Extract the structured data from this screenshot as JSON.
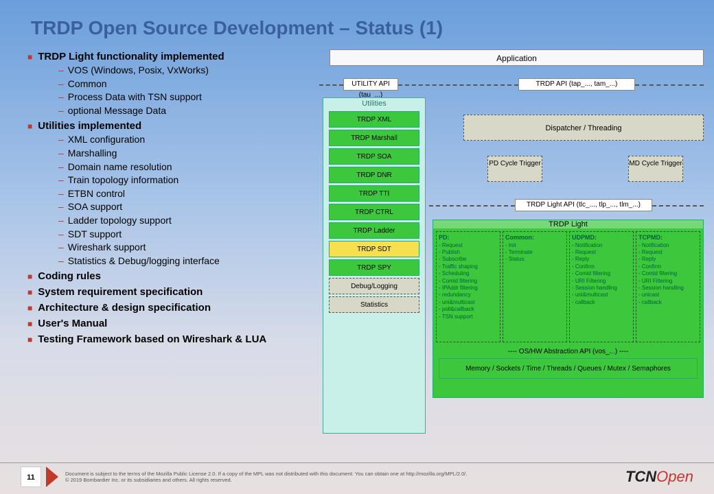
{
  "title": "TRDP Open Source Development – Status (1)",
  "bullets": [
    {
      "text": "TRDP Light functionality implemented",
      "sub": [
        "VOS (Windows, Posix, VxWorks)",
        "Common",
        "Process Data with TSN support",
        "optional Message Data"
      ]
    },
    {
      "text": "Utilities implemented",
      "sub": [
        "XML configuration",
        "Marshalling",
        "Domain name resolution",
        "Train topology information",
        "ETBN control",
        "SOA support",
        "Ladder topology support",
        "SDT support",
        "Wireshark support",
        "Statistics & Debug/logging interface"
      ]
    },
    {
      "text": "Coding rules"
    },
    {
      "text": "System requirement specification"
    },
    {
      "text": "Architecture & design specification"
    },
    {
      "text": "User's Manual"
    },
    {
      "text": "Testing Framework based on Wireshark & LUA"
    }
  ],
  "diagram": {
    "application": "Application",
    "utility_api": "UTILITY API (tau_...)",
    "trdp_api": "TRDP API (tap_..., tam_...)",
    "light_api": "TRDP Light API (tlc_..., tlp_..., tlm_...)",
    "utilities_title": "Utilities",
    "util_items": [
      {
        "label": "TRDP XML",
        "style": "green"
      },
      {
        "label": "TRDP Marshall",
        "style": "green"
      },
      {
        "label": "TRDP SOA",
        "style": "green"
      },
      {
        "label": "TRDP DNR",
        "style": "green"
      },
      {
        "label": "TRDP TTI",
        "style": "green"
      },
      {
        "label": "TRDP CTRL",
        "style": "green"
      },
      {
        "label": "TRDP Ladder",
        "style": "green"
      },
      {
        "label": "TRDP SDT",
        "style": "yellow"
      },
      {
        "label": "TRDP SPY",
        "style": "green"
      },
      {
        "label": "Debug/Logging",
        "style": "dashed"
      },
      {
        "label": "Statistics",
        "style": "dashed"
      }
    ],
    "dispatcher": "Dispatcher / Threading",
    "pd_trigger": "PD Cycle Trigger",
    "md_trigger": "MD Cycle Trigger",
    "light_title": "TRDP Light",
    "light_cols": [
      {
        "h": "PD:",
        "items": [
          "Request",
          "Publish",
          "Subscribe",
          "Traffic shaping",
          "Scheduling",
          "Comid filtering",
          "IPAddr filtering",
          "redundancy",
          "uni&multicast",
          "poll&callback",
          "TSN support"
        ]
      },
      {
        "h": "Common:",
        "items": [
          "Init",
          "Terminate",
          "Status"
        ]
      },
      {
        "h": "UDPMD:",
        "items": [
          "Notification",
          "Request",
          "Reply",
          "Confirm",
          "Comid filtering",
          "URI Filtering",
          "Session handling",
          "uni&multicast",
          "callback"
        ]
      },
      {
        "h": "TCPMD:",
        "items": [
          "Notification",
          "Request",
          "Reply",
          "Confirm",
          "Comid filtering",
          "URI Filtering",
          "Session handling",
          "unicast",
          "callback"
        ]
      }
    ],
    "os_abstraction": "OS/HW Abstraction API (vos_...)",
    "memory": "Memory / Sockets / Time / Threads / Queues / Mutex / Semaphores"
  },
  "footer": {
    "page": "11",
    "line1": "Document is subject to the terms of the Mozilla Public License 2.0. If a copy of the MPL was not distributed with this document: You can obtain one at http://mozilla.org/MPL/2.0/.",
    "line2": "© 2019 Bombardier Inc. or its subsidiaries and others. All rights reserved.",
    "logo1": "TCN",
    "logo2": "Open"
  },
  "colors": {
    "title": "#3a5f9e",
    "bullet": "#c0392b",
    "green": "#3cc73c",
    "yellow": "#f5e050",
    "dashed_bg": "#d8d8c8",
    "util_bg": "#c8f0e8"
  }
}
